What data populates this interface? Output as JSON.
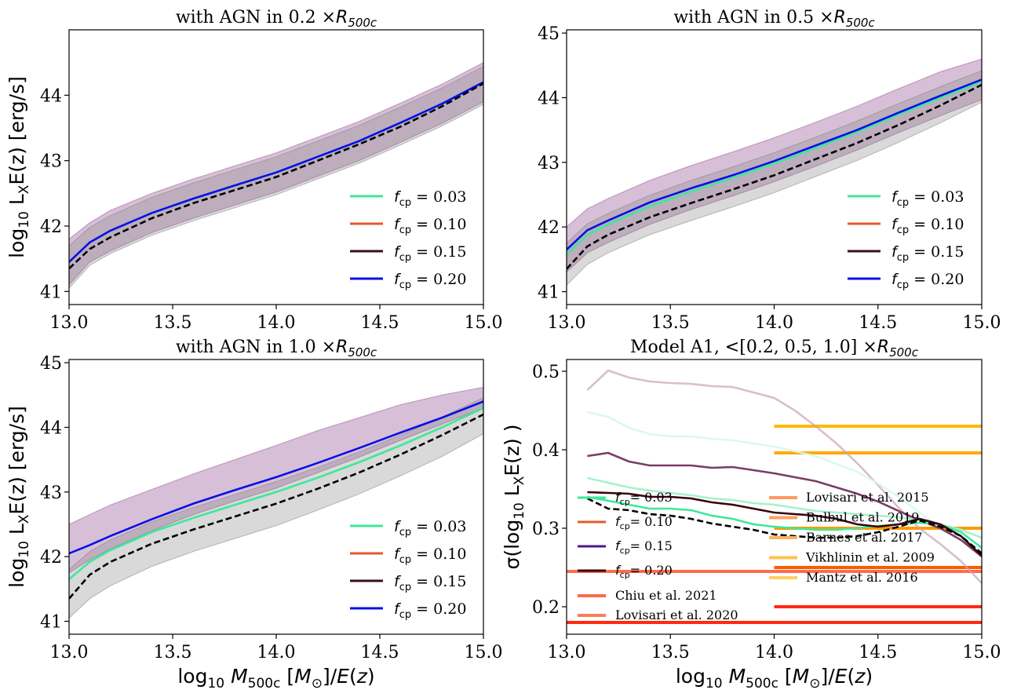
{
  "figure": {
    "xlabel": "log₁₀ M₅₀₀c [M☉]/E(z)"
  },
  "legend_fcp": [
    {
      "label": "f_cp = 0.03",
      "sym": "f",
      "sub": "cp",
      "eq": "= 0.03",
      "color": "#3de89a"
    },
    {
      "label": "f_cp = 0.10",
      "sym": "f",
      "sub": "cp",
      "eq": "= 0.10",
      "color": "#e35a2b"
    },
    {
      "label": "f_cp = 0.15",
      "sym": "f",
      "sub": "cp",
      "eq": "= 0.15",
      "color": "#3a0f1f"
    },
    {
      "label": "f_cp = 0.20",
      "sym": "f",
      "sub": "cp",
      "eq": "= 0.20",
      "color": "#0a0fe6"
    }
  ],
  "legend_model_a1": [
    {
      "label": "f_cp = 0.03",
      "sym": "f",
      "sub": "cp",
      "eq": "= 0.03",
      "color": "#3de89a"
    },
    {
      "label": "f_cp = 0.10",
      "sym": "f",
      "sub": "cp",
      "eq": "= 0.10",
      "color": "#e35a2b"
    },
    {
      "label": "f_cp = 0.15",
      "sym": "f",
      "sub": "cp",
      "eq": "= 0.15",
      "color": "#4b1a8c"
    },
    {
      "label": "f_cp = 0.20",
      "sym": "f",
      "sub": "cp",
      "eq": "= 0.20",
      "color": "#3a0010"
    }
  ],
  "chart_data": [
    {
      "type": "line",
      "title": "with AGN in 0.2 ×R500c",
      "title_main": "with AGN in 0.2 ×",
      "xlabel": "",
      "ylabel": "log₁₀ LXE(z) [erg/s]",
      "xlim": [
        13.0,
        15.0
      ],
      "ylim": [
        40.8,
        45.0
      ],
      "xticks": [
        13.0,
        13.5,
        14.0,
        14.5,
        15.0
      ],
      "xtick_labels": [
        "13.0",
        "13.5",
        "14.0",
        "14.5",
        "15.0"
      ],
      "yticks": [
        41,
        42,
        43,
        44
      ],
      "ytick_labels": [
        "41",
        "42",
        "43",
        "44"
      ],
      "x": [
        13.0,
        13.1,
        13.2,
        13.4,
        13.6,
        13.8,
        14.0,
        14.2,
        14.4,
        14.6,
        14.8,
        15.0
      ],
      "series": [
        {
          "name": "f_cp = 0.03",
          "values": [
            41.45,
            41.75,
            41.93,
            42.2,
            42.42,
            42.62,
            42.82,
            43.06,
            43.3,
            43.58,
            43.87,
            44.2
          ],
          "color": "#3de89a"
        },
        {
          "name": "f_cp = 0.20",
          "values": [
            41.45,
            41.75,
            41.93,
            42.2,
            42.42,
            42.62,
            42.82,
            43.06,
            43.3,
            43.58,
            43.87,
            44.2
          ],
          "color": "#0a0fe6"
        },
        {
          "name": "",
          "values": [
            41.35,
            41.65,
            41.83,
            42.12,
            42.35,
            42.55,
            42.75,
            43.0,
            43.25,
            43.52,
            43.83,
            44.18
          ],
          "color": "#000000",
          "dashed": true
        }
      ],
      "bands": [
        {
          "lower": [
            41.1,
            41.45,
            41.62,
            41.9,
            42.12,
            42.32,
            42.52,
            42.76,
            43.0,
            43.28,
            43.57,
            43.9
          ],
          "upper": [
            41.8,
            42.05,
            42.24,
            42.5,
            42.72,
            42.92,
            43.12,
            43.36,
            43.6,
            43.88,
            44.17,
            44.5
          ],
          "color": "#8b4a8b",
          "opacity": 0.35
        },
        {
          "lower": [
            41.05,
            41.4,
            41.58,
            41.86,
            42.08,
            42.28,
            42.48,
            42.72,
            42.96,
            43.24,
            43.53,
            43.86
          ],
          "upper": [
            41.7,
            41.98,
            42.16,
            42.44,
            42.66,
            42.86,
            43.06,
            43.3,
            43.54,
            43.82,
            44.11,
            44.44
          ],
          "color": "#808080",
          "opacity": 0.3
        }
      ],
      "legend": "lower-right"
    },
    {
      "type": "line",
      "title": "with AGN in 0.5 ×R500c",
      "title_main": "with AGN in 0.5 ×",
      "xlabel": "",
      "ylabel": "",
      "xlim": [
        13.0,
        15.0
      ],
      "ylim": [
        40.8,
        45.05
      ],
      "xticks": [
        13.0,
        13.5,
        14.0,
        14.5,
        15.0
      ],
      "xtick_labels": [
        "13.0",
        "13.5",
        "14.0",
        "14.5",
        "15.0"
      ],
      "yticks": [
        41,
        42,
        43,
        44,
        45
      ],
      "ytick_labels": [
        "41",
        "42",
        "43",
        "44",
        "45"
      ],
      "x": [
        13.0,
        13.1,
        13.2,
        13.4,
        13.6,
        13.8,
        14.0,
        14.2,
        14.4,
        14.6,
        14.8,
        15.0
      ],
      "series": [
        {
          "name": "f_cp = 0.03",
          "values": [
            41.58,
            41.88,
            42.04,
            42.32,
            42.55,
            42.76,
            42.98,
            43.22,
            43.47,
            43.74,
            44.0,
            44.25
          ],
          "color": "#3de89a"
        },
        {
          "name": "f_cp = 0.20",
          "values": [
            41.65,
            41.95,
            42.1,
            42.38,
            42.6,
            42.8,
            43.02,
            43.26,
            43.5,
            43.77,
            44.03,
            44.28
          ],
          "color": "#0a0fe6"
        },
        {
          "name": "",
          "values": [
            41.35,
            41.7,
            41.88,
            42.15,
            42.37,
            42.58,
            42.8,
            43.05,
            43.3,
            43.58,
            43.88,
            44.2
          ],
          "color": "#000000",
          "dashed": true
        }
      ],
      "bands": [
        {
          "lower": [
            41.3,
            41.6,
            41.76,
            42.04,
            42.27,
            42.48,
            42.7,
            42.94,
            43.19,
            43.46,
            43.72,
            43.97
          ],
          "upper": [
            42.0,
            42.28,
            42.44,
            42.72,
            42.95,
            43.16,
            43.38,
            43.62,
            43.87,
            44.14,
            44.4,
            44.6
          ],
          "color": "#8b4a8b",
          "opacity": 0.35
        },
        {
          "lower": [
            41.1,
            41.42,
            41.6,
            41.88,
            42.1,
            42.31,
            42.53,
            42.78,
            43.03,
            43.31,
            43.61,
            43.93
          ],
          "upper": [
            41.75,
            42.05,
            42.21,
            42.49,
            42.72,
            42.93,
            43.15,
            43.39,
            43.64,
            43.91,
            44.17,
            44.42
          ],
          "color": "#808080",
          "opacity": 0.3
        }
      ],
      "legend": "lower-right"
    },
    {
      "type": "line",
      "title": "with AGN in 1.0 ×R500c",
      "title_main": "with AGN in 1.0 ×",
      "xlabel": "log₁₀ M₅₀₀c [M☉]/E(z)",
      "ylabel": "log₁₀ LXE(z) [erg/s]",
      "xlim": [
        13.0,
        15.0
      ],
      "ylim": [
        40.8,
        45.05
      ],
      "xticks": [
        13.0,
        13.5,
        14.0,
        14.5,
        15.0
      ],
      "xtick_labels": [
        "13.0",
        "13.5",
        "14.0",
        "14.5",
        "15.0"
      ],
      "yticks": [
        41,
        42,
        43,
        44,
        45
      ],
      "ytick_labels": [
        "41",
        "42",
        "43",
        "44",
        "45"
      ],
      "x": [
        13.0,
        13.1,
        13.2,
        13.4,
        13.6,
        13.8,
        14.0,
        14.2,
        14.4,
        14.6,
        14.8,
        15.0
      ],
      "series": [
        {
          "name": "f_cp = 0.03",
          "values": [
            41.65,
            41.92,
            42.1,
            42.38,
            42.6,
            42.8,
            43.0,
            43.22,
            43.46,
            43.72,
            44.0,
            44.3
          ],
          "color": "#3de89a"
        },
        {
          "name": "f_cp = 0.20",
          "values": [
            42.05,
            42.18,
            42.32,
            42.58,
            42.82,
            43.03,
            43.23,
            43.45,
            43.68,
            43.92,
            44.15,
            44.4
          ],
          "color": "#0a0fe6"
        },
        {
          "name": "",
          "values": [
            41.35,
            41.72,
            41.92,
            42.2,
            42.42,
            42.62,
            42.82,
            43.05,
            43.3,
            43.58,
            43.88,
            44.2
          ],
          "color": "#000000",
          "dashed": true
        }
      ],
      "bands": [
        {
          "lower": [
            41.75,
            41.95,
            42.12,
            42.4,
            42.65,
            42.86,
            43.06,
            43.3,
            43.54,
            43.8,
            44.05,
            44.3
          ],
          "upper": [
            42.5,
            42.65,
            42.8,
            43.04,
            43.28,
            43.5,
            43.72,
            43.95,
            44.15,
            44.35,
            44.5,
            44.62
          ],
          "color": "#8b4a8b",
          "opacity": 0.35
        },
        {
          "lower": [
            41.05,
            41.35,
            41.55,
            41.85,
            42.08,
            42.28,
            42.48,
            42.72,
            42.97,
            43.25,
            43.55,
            43.9
          ],
          "upper": [
            41.8,
            42.08,
            42.26,
            42.54,
            42.76,
            42.96,
            43.16,
            43.38,
            43.62,
            43.88,
            44.16,
            44.46
          ],
          "color": "#808080",
          "opacity": 0.3
        }
      ],
      "legend": "lower-right"
    },
    {
      "type": "line",
      "title": "Model A1, <[0.2, 0.5, 1.0] ×R500c",
      "title_main": "Model A1, <[0.2, 0.5, 1.0] ×",
      "xlabel": "log₁₀ M₅₀₀c [M☉]/E(z)",
      "ylabel": "σ(log₁₀ LXE(z) )",
      "xlim": [
        13.0,
        15.0
      ],
      "ylim": [
        0.165,
        0.515
      ],
      "xticks": [
        13.0,
        13.5,
        14.0,
        14.5,
        15.0
      ],
      "xtick_labels": [
        "13.0",
        "13.5",
        "14.0",
        "14.5",
        "15.0"
      ],
      "yticks": [
        0.2,
        0.3,
        0.4,
        0.5
      ],
      "ytick_labels": [
        "0.2",
        "0.3",
        "0.4",
        "0.5"
      ],
      "x": [
        13.1,
        13.2,
        13.3,
        13.4,
        13.5,
        13.6,
        13.7,
        13.8,
        13.9,
        14.0,
        14.1,
        14.2,
        14.3,
        14.4,
        14.5,
        14.6,
        14.7,
        14.8,
        14.9,
        15.0
      ],
      "series": [
        {
          "name": "",
          "values": [
            0.476,
            0.501,
            0.492,
            0.487,
            0.485,
            0.484,
            0.481,
            0.48,
            0.473,
            0.466,
            0.45,
            0.43,
            0.408,
            0.383,
            0.355,
            0.326,
            0.3,
            0.28,
            0.258,
            0.23
          ],
          "color": "#c9a3b8",
          "opacity": 0.7
        },
        {
          "name": "",
          "values": [
            0.448,
            0.442,
            0.428,
            0.42,
            0.417,
            0.417,
            0.414,
            0.412,
            0.408,
            0.404,
            0.398,
            0.392,
            0.382,
            0.372,
            0.357,
            0.34,
            0.32,
            0.3,
            0.285,
            0.272
          ],
          "color": "#d8f7ea",
          "opacity": 0.9
        },
        {
          "name": "",
          "values": [
            0.392,
            0.396,
            0.385,
            0.38,
            0.38,
            0.38,
            0.377,
            0.378,
            0.374,
            0.37,
            0.365,
            0.36,
            0.352,
            0.344,
            0.334,
            0.322,
            0.31,
            0.3,
            0.285,
            0.264
          ],
          "color": "#7a3d63",
          "opacity": 1
        },
        {
          "name": "",
          "values": [
            0.364,
            0.358,
            0.352,
            0.348,
            0.345,
            0.342,
            0.338,
            0.336,
            0.332,
            0.33,
            0.326,
            0.322,
            0.32,
            0.318,
            0.316,
            0.314,
            0.31,
            0.305,
            0.298,
            0.288
          ],
          "color": "#a8f0cc",
          "opacity": 1
        },
        {
          "name": "f_cp = 0.03",
          "values": [
            0.34,
            0.335,
            0.33,
            0.325,
            0.325,
            0.323,
            0.316,
            0.312,
            0.305,
            0.302,
            0.3,
            0.298,
            0.298,
            0.3,
            0.303,
            0.305,
            0.307,
            0.305,
            0.295,
            0.275
          ],
          "color": "#3de89a",
          "opacity": 1
        },
        {
          "name": "f_cp = 0.20",
          "values": [
            0.346,
            0.345,
            0.344,
            0.34,
            0.34,
            0.338,
            0.333,
            0.33,
            0.325,
            0.32,
            0.318,
            0.316,
            0.312,
            0.305,
            0.302,
            0.305,
            0.312,
            0.305,
            0.29,
            0.265
          ],
          "color": "#3a0010",
          "opacity": 1
        },
        {
          "name": "",
          "values": [
            0.338,
            0.325,
            0.323,
            0.318,
            0.316,
            0.312,
            0.306,
            0.302,
            0.298,
            0.292,
            0.29,
            0.288,
            0.288,
            0.29,
            0.295,
            0.302,
            0.31,
            0.302,
            0.29,
            0.268
          ],
          "color": "#000000",
          "dashed": true
        }
      ],
      "hlines": [
        {
          "label": "Chiu et al. 2021",
          "y": 0.245,
          "x0": 13.0,
          "x1": 15.0,
          "color": "#ff6b4a"
        },
        {
          "label": "Lovisari et al. 2020",
          "y": 0.18,
          "x0": 13.0,
          "x1": 15.0,
          "color": "#ff2a10"
        },
        {
          "label": "Lovisari et al. 2015",
          "y": 0.2,
          "x0": 14.0,
          "x1": 15.0,
          "color": "#ff2a10"
        },
        {
          "label": "Bulbul et al. 2019",
          "y": 0.25,
          "x0": 14.0,
          "x1": 15.0,
          "color": "#ff5a00"
        },
        {
          "label": "Barnes et al. 2017",
          "y": 0.3,
          "x0": 14.0,
          "x1": 15.0,
          "color": "#ff9a00"
        },
        {
          "label": "Vikhlinin et al. 2009",
          "y": 0.396,
          "x0": 14.0,
          "x1": 15.0,
          "color": "#ffaa00"
        },
        {
          "label": "Mantz et al. 2016",
          "y": 0.43,
          "x0": 14.0,
          "x1": 15.0,
          "color": "#ffb800"
        }
      ],
      "legend_refs_left": [
        {
          "label": "Chiu et al. 2021",
          "color": "#ff6b4a"
        },
        {
          "label": "Lovisari et al. 2020",
          "color": "#f5805a"
        }
      ],
      "legend_refs_right": [
        {
          "label": "Lovisari et al. 2015",
          "color": "#ff9a5c"
        },
        {
          "label": "Bulbul et al. 2019",
          "color": "#ffa060"
        },
        {
          "label": "Barnes et al. 2017",
          "color": "#ffb060"
        },
        {
          "label": "Vikhlinin et al. 2009",
          "color": "#ffc14a"
        },
        {
          "label": "Mantz et al. 2016",
          "color": "#ffd060"
        }
      ],
      "legend": "center"
    }
  ]
}
